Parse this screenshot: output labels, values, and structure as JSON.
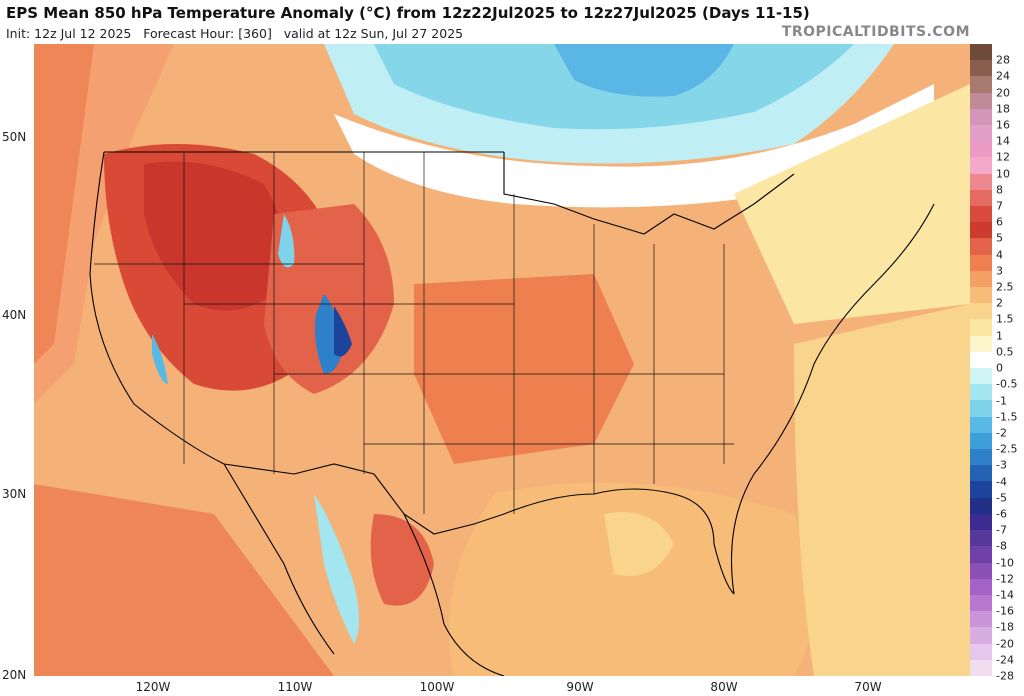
{
  "header": {
    "title": "EPS Mean 850 hPa Temperature Anomaly (°C) from 12z22Jul2025 to 12z27Jul2025 (Days 11-15)",
    "subtitle": "Init: 12z Jul 12 2025   Forecast Hour: [360]   valid at 12z Sun, Jul 27 2025",
    "brand": "TROPICALTIDBITS.COM"
  },
  "axes": {
    "lat_labels": [
      "50N",
      "40N",
      "30N",
      "20N"
    ],
    "lon_labels": [
      "120W",
      "110W",
      "100W",
      "90W",
      "80W",
      "70W"
    ]
  },
  "colorbar": {
    "labels": [
      "28",
      "24",
      "20",
      "18",
      "16",
      "14",
      "12",
      "10",
      "8",
      "7",
      "6",
      "5",
      "4",
      "3",
      "2.5",
      "2",
      "1.5",
      "1",
      "0.5",
      "0",
      "-0.5",
      "-1",
      "-1.5",
      "-2",
      "-2.5",
      "-3",
      "-4",
      "-5",
      "-6",
      "-7",
      "-8",
      "-10",
      "-12",
      "-14",
      "-16",
      "-18",
      "-20",
      "-24",
      "-28"
    ],
    "colors": [
      "#6e4a3a",
      "#8a5e4e",
      "#a67a6e",
      "#c08a96",
      "#d496b8",
      "#e0a0c8",
      "#ec9cc4",
      "#f5a8c8",
      "#ee8890",
      "#e56a62",
      "#d84a3e",
      "#cc3a30",
      "#e2634a",
      "#ee8050",
      "#f4a064",
      "#f6bc78",
      "#f9d48c",
      "#fbe6a4",
      "#fdf6cc",
      "#ffffff",
      "#cff4f6",
      "#a4e6f0",
      "#7ed2ea",
      "#58bae4",
      "#3e9ed8",
      "#2e80c8",
      "#2462b4",
      "#1c449c",
      "#23308a",
      "#3a2c90",
      "#56389a",
      "#6e40a8",
      "#8a50b8",
      "#a262c6",
      "#b878d2",
      "#c994da",
      "#d8aee2",
      "#e6c6ea",
      "#f2dcf0"
    ]
  },
  "map_legend": "850 hPa temperature anomaly over the contiguous United States, Mexico and southern Canada"
}
